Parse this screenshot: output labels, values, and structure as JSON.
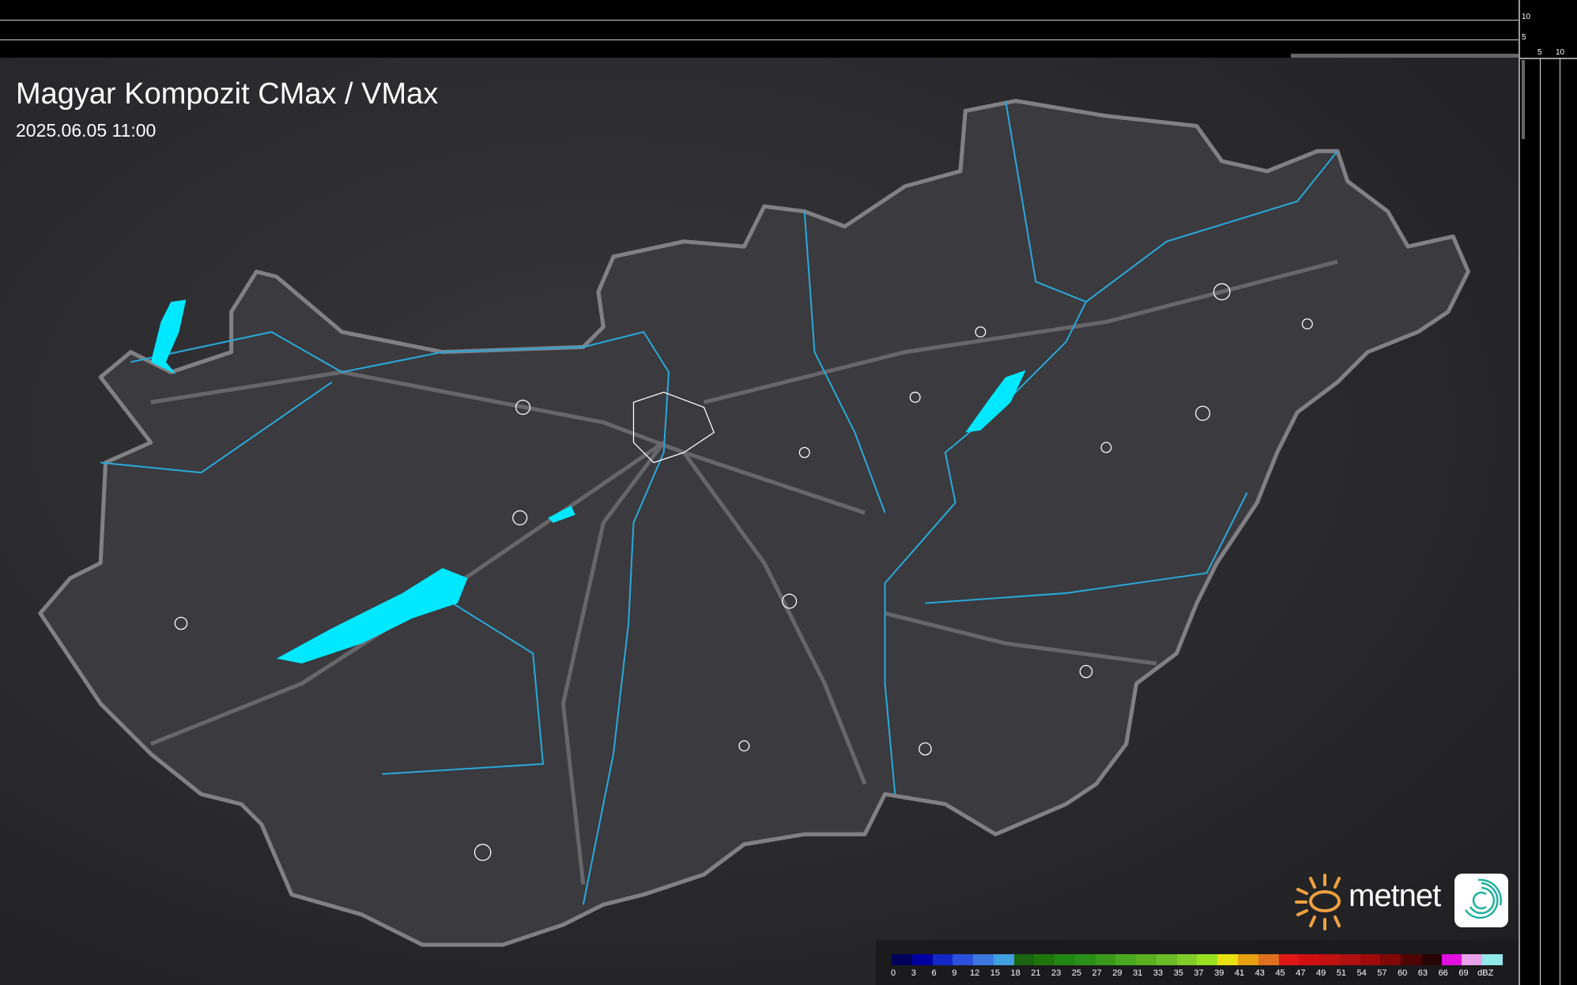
{
  "header": {
    "title": "Magyar Kompozit CMax / VMax",
    "datetime": "2025.06.05 11:00"
  },
  "profile_axes": {
    "left_ticks": [
      "10",
      "5"
    ],
    "bottom_ticks": [
      "5",
      "10"
    ]
  },
  "legend": {
    "unit": "dBZ",
    "labels": [
      "0",
      "3",
      "6",
      "9",
      "12",
      "15",
      "18",
      "21",
      "23",
      "25",
      "27",
      "29",
      "31",
      "33",
      "35",
      "37",
      "39",
      "41",
      "43",
      "45",
      "47",
      "49",
      "51",
      "54",
      "57",
      "60",
      "63",
      "66",
      "69"
    ],
    "colors": [
      "#00005a",
      "#0000a0",
      "#1428c8",
      "#2a50dc",
      "#3c78e0",
      "#40a0e0",
      "#1a6410",
      "#1e760a",
      "#228614",
      "#2a9018",
      "#3a9a1a",
      "#48a820",
      "#5ab020",
      "#6cbc28",
      "#82cc2a",
      "#9ae020",
      "#e8e010",
      "#e8a010",
      "#e07020",
      "#e01818",
      "#d01010",
      "#c01010",
      "#b01010",
      "#a00a0a",
      "#800808",
      "#500505",
      "#2a0505",
      "#e010e0",
      "#e8a0e8",
      "#90e8e8"
    ]
  },
  "branding": {
    "logo_text": "metnet",
    "sun_color": "#f0a040",
    "icon_color": "#20b0a0"
  },
  "map_colors": {
    "border": "#7a7a7e",
    "rivers": "#2aa8d8",
    "lakes": "#00e8ff",
    "roads": "#6a6a6e",
    "cities": "#ffffff"
  }
}
